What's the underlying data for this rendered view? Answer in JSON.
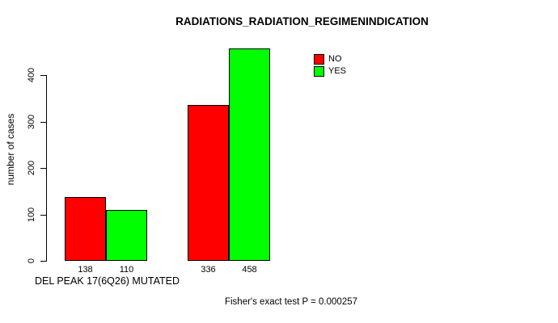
{
  "chart_data": {
    "type": "bar",
    "title": "RADIATIONS_RADIATION_REGIMENINDICATION",
    "xlabel": "DEL PEAK 17(6Q26) MUTATED",
    "ylabel": "number of cases",
    "annotation": "Fisher's exact test P = 0.000257",
    "ylim": [
      0,
      460
    ],
    "yticks": [
      0,
      100,
      200,
      300,
      400
    ],
    "grid": false,
    "series_names": [
      "NO",
      "YES"
    ],
    "colors": {
      "NO": "#ff0000",
      "YES": "#00ff00"
    },
    "groups": [
      {
        "bars": [
          {
            "series": "NO",
            "value": 138,
            "color": "#ff0000",
            "label": "138"
          },
          {
            "series": "YES",
            "value": 110,
            "color": "#00ff00",
            "label": "110"
          }
        ]
      },
      {
        "bars": [
          {
            "series": "NO",
            "value": 336,
            "color": "#ff0000",
            "label": "336"
          },
          {
            "series": "YES",
            "value": 458,
            "color": "#00ff00",
            "label": "458"
          }
        ]
      }
    ],
    "legend": {
      "position": "top-right-inside",
      "entries": [
        {
          "label": "NO",
          "color": "#ff0000"
        },
        {
          "label": "YES",
          "color": "#00ff00"
        }
      ]
    }
  }
}
